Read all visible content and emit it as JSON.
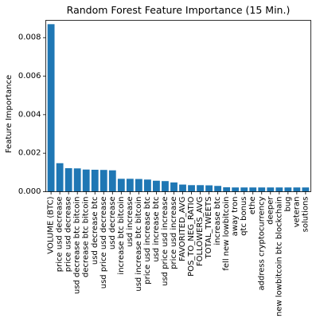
{
  "chart_data": {
    "type": "bar",
    "title": "Random Forest Feature Importance (15 Min.)",
    "xlabel": "",
    "ylabel": "Feature Importance",
    "ylim": [
      0,
      0.0089
    ],
    "yticks": [
      0.0,
      0.002,
      0.004,
      0.006,
      0.008
    ],
    "ytick_labels": [
      "0.000",
      "0.002",
      "0.004",
      "0.006",
      "0.008"
    ],
    "bar_color": "#1f77b4",
    "grid": false,
    "legend": "none",
    "categories": [
      "VOLUME (BTC)",
      "price usd decrease",
      "price usd decrease",
      "usd decrease btc bitcoin",
      "decrease btc bitcoin",
      "usd decrease btc",
      "usd price usd decrease",
      "usd decrease",
      "increase btc bitcoin",
      "usd increase",
      "usd increase btc bitcoin",
      "price usd increase btc",
      "usd increase btc",
      "usd price usd increase",
      "price usd increase",
      "FAVORITED_AVG",
      "POS_TO_NEG_RATIO",
      "FOLLOWERS_AVG",
      "TOTAL_TWEETS",
      "increase btc",
      "fell new lowbitcoin",
      "away tron",
      "qtc bonus",
      "ethe",
      "address cryptocurrency",
      "deeper",
      "new lowbitcoin btc blockchain",
      "bug",
      "veteran",
      "solutions"
    ],
    "values": [
      0.0087,
      0.00148,
      0.00122,
      0.00121,
      0.00115,
      0.00114,
      0.00113,
      0.00111,
      0.00067,
      0.00067,
      0.00066,
      0.00063,
      0.00057,
      0.00055,
      0.00048,
      0.00037,
      0.00034,
      0.00034,
      0.00033,
      0.0003,
      0.00023,
      0.00022,
      0.00022,
      0.00022,
      0.00022,
      0.00022,
      0.00022,
      0.00022,
      0.00022,
      0.00022
    ]
  }
}
